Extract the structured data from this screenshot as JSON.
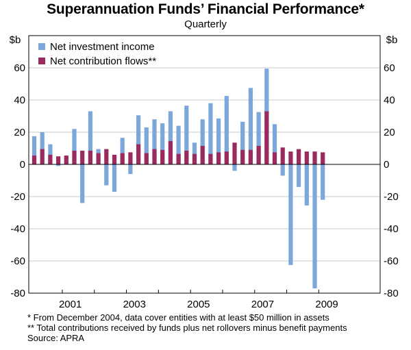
{
  "chart_data": {
    "type": "bar",
    "title": "Superannuation Funds’ Financial Performance*",
    "subtitle": "Quarterly",
    "ylabel_left": "$b",
    "ylabel_right": "$b",
    "ylim": [
      -80,
      80
    ],
    "yticks": [
      -80,
      -60,
      -40,
      -20,
      0,
      20,
      40,
      60
    ],
    "xticks": [
      "2001",
      "2003",
      "2005",
      "2007",
      "2009"
    ],
    "xtick_quarter_index": [
      5,
      13,
      21,
      29,
      37
    ],
    "legend_position": "top-left",
    "colors": {
      "investment": "#7ba7db",
      "contribution": "#9b2a5e",
      "frame": "#000000"
    },
    "series": [
      {
        "name": "Net investment income",
        "key": "investment",
        "values": [
          17.5,
          20,
          12.5,
          -1,
          5,
          22,
          -24,
          33,
          9.5,
          -13,
          -17,
          16.5,
          -6,
          30.5,
          23,
          28,
          25.5,
          33,
          24,
          36.5,
          13.5,
          28,
          38,
          28.5,
          42.5,
          -4,
          26.5,
          47.5,
          32.5,
          59.5,
          25,
          -7,
          -62.5,
          -14,
          -25.5,
          -77,
          -22
        ]
      },
      {
        "name": "Net contribution flows**",
        "key": "contribution",
        "values": [
          5.5,
          9.5,
          6,
          5,
          5.5,
          8.5,
          8.5,
          8.5,
          7,
          9.5,
          6,
          7,
          7.5,
          12.5,
          7,
          9.5,
          9,
          14.5,
          6.5,
          8.5,
          6.5,
          11.5,
          6.5,
          7.5,
          8,
          13.5,
          9,
          9,
          11.5,
          33,
          7.5,
          10.5,
          8,
          9.5,
          8,
          8,
          7.5
        ]
      }
    ]
  },
  "footnotes": {
    "note1": "*   From December 2004, data cover entities with at least $50 million in assets",
    "note2": "** Total contributions received by funds plus net rollovers minus benefit payments",
    "source": "Source: APRA"
  }
}
